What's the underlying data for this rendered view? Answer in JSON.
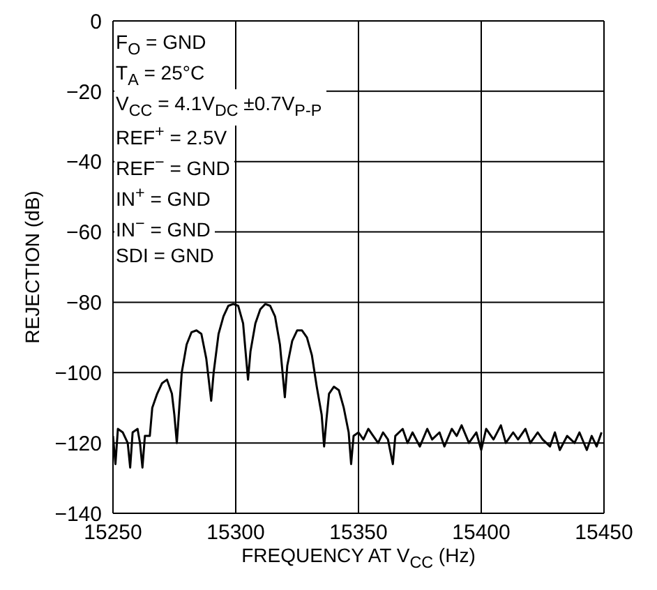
{
  "chart_data": {
    "type": "line",
    "xlabel": "FREQUENCY AT V$_{CC}$ (Hz)",
    "ylabel": "REJECTION (dB)",
    "annotations": [
      "F$_{O}$ = GND",
      "T$_{A}$ = 25°C",
      "V$_{CC}$ = 4.1V$_{DC}$ ±0.7V$_{P-P}$",
      "REF$^{+}$ = 2.5V",
      "REF$^{−}$ = GND",
      "IN$^{+}$ = GND",
      "IN$^{−}$ = GND",
      "SDI = GND"
    ],
    "xlim": [
      15250,
      15450
    ],
    "xticks": [
      15250,
      15300,
      15350,
      15400,
      15450
    ],
    "ylim": [
      -140,
      0
    ],
    "yticks": [
      -140,
      -120,
      -100,
      -80,
      -60,
      -40,
      -20,
      0
    ],
    "grid": true,
    "marker": "none",
    "line_style": "solid",
    "series": [
      {
        "color": "#000000",
        "x": [
          15250,
          15251,
          15252,
          15254,
          15256,
          15257,
          15258,
          15260,
          15261,
          15262,
          15263,
          15265,
          15266,
          15268,
          15270,
          15272,
          15274,
          15275,
          15276,
          15277,
          15278,
          15280,
          15282,
          15284,
          15286,
          15288,
          15290,
          15291,
          15293,
          15295,
          15297,
          15299,
          15301,
          15303,
          15305,
          15306,
          15308,
          15310,
          15312,
          15314,
          15316,
          15318,
          15320,
          15321,
          15323,
          15325,
          15327,
          15329,
          15331,
          15333,
          15335,
          15336,
          15337,
          15338,
          15340,
          15342,
          15344,
          15346,
          15347,
          15348,
          15350,
          15352,
          15354,
          15356,
          15358,
          15360,
          15362,
          15364,
          15365,
          15368,
          15370,
          15372,
          15375,
          15378,
          15380,
          15383,
          15385,
          15388,
          15390,
          15392,
          15395,
          15398,
          15400,
          15402,
          15405,
          15408,
          15410,
          15413,
          15415,
          15418,
          15420,
          15423,
          15425,
          15428,
          15430,
          15432,
          15435,
          15438,
          15440,
          15443,
          15445,
          15447,
          15449
        ],
        "values": [
          -118,
          -126,
          -116,
          -117,
          -120,
          -127,
          -117,
          -116,
          -120,
          -127,
          -118,
          -118,
          -110,
          -106,
          -103,
          -102,
          -106,
          -112,
          -120,
          -110,
          -100,
          -92,
          -88.5,
          -88,
          -89,
          -96,
          -108,
          -100,
          -89,
          -84,
          -81,
          -80.5,
          -81,
          -86,
          -102,
          -94,
          -86,
          -82,
          -80.5,
          -81,
          -84,
          -92,
          -107,
          -98,
          -91,
          -88,
          -88,
          -90,
          -95,
          -104,
          -112,
          -121,
          -113,
          -106,
          -104,
          -105,
          -110,
          -117,
          -126,
          -118,
          -117,
          -119,
          -116,
          -118,
          -120,
          -117,
          -119,
          -126,
          -118,
          -116,
          -120,
          -117,
          -121,
          -116,
          -119,
          -117,
          -121,
          -116,
          -118,
          -115,
          -120,
          -117,
          -122,
          -116,
          -119,
          -115,
          -120,
          -117,
          -119,
          -116,
          -120,
          -117,
          -119,
          -121,
          -117,
          -122,
          -118,
          -120,
          -117,
          -122,
          -118,
          -121,
          -117
        ]
      }
    ]
  }
}
